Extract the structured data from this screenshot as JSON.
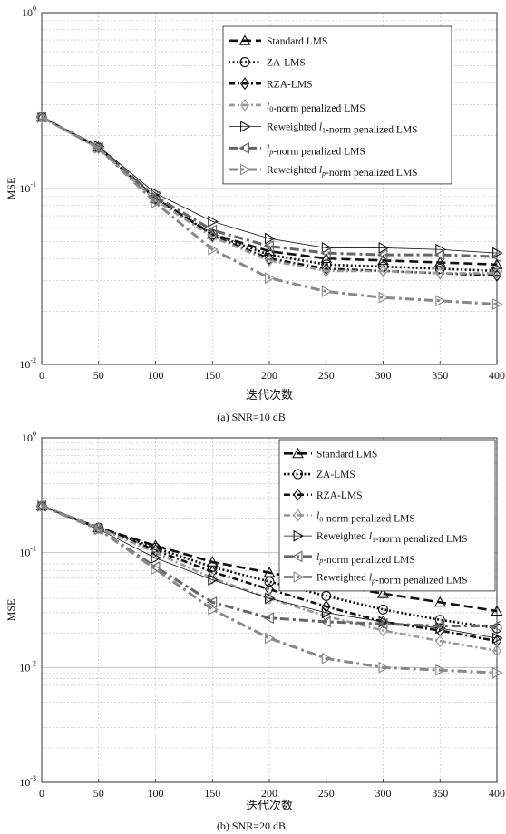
{
  "chart_data": [
    {
      "type": "line",
      "ylabel": "MSE",
      "xlabel": "迭代次数",
      "caption": "(a) SNR=10 dB",
      "xlim": [
        0,
        400
      ],
      "ylim": [
        0.01,
        1
      ],
      "yscale": "log",
      "xticks": [
        "0",
        "50",
        "100",
        "150",
        "200",
        "250",
        "300",
        "350",
        "400"
      ],
      "yticks": [
        {
          "base": "10",
          "exp": "0"
        },
        {
          "base": "10",
          "exp": "-1"
        },
        {
          "base": "10",
          "exp": "-2"
        }
      ],
      "grid": true,
      "legend_position": "top-right",
      "x": [
        0,
        50,
        100,
        150,
        200,
        250,
        300,
        350,
        400
      ],
      "series": [
        {
          "name": "Standard LMS",
          "values": [
            0.255,
            0.172,
            0.088,
            0.055,
            0.044,
            0.04,
            0.039,
            0.038,
            0.037
          ]
        },
        {
          "name": "ZA-LMS",
          "values": [
            0.255,
            0.171,
            0.087,
            0.055,
            0.042,
            0.037,
            0.036,
            0.035,
            0.034
          ]
        },
        {
          "name": "RZA-LMS",
          "values": [
            0.255,
            0.17,
            0.086,
            0.054,
            0.04,
            0.035,
            0.034,
            0.033,
            0.032
          ]
        },
        {
          "name": "l0-norm penalized LMS",
          "values": [
            0.255,
            0.17,
            0.086,
            0.053,
            0.039,
            0.034,
            0.034,
            0.033,
            0.033
          ]
        },
        {
          "name": "Reweighted l1-norm penalized LMS",
          "values": [
            0.255,
            0.174,
            0.094,
            0.065,
            0.052,
            0.046,
            0.046,
            0.045,
            0.043
          ]
        },
        {
          "name": "lp-norm penalized LMS",
          "values": [
            0.255,
            0.17,
            0.09,
            0.058,
            0.047,
            0.043,
            0.042,
            0.042,
            0.041
          ]
        },
        {
          "name": "Reweighted lp-norm penalized LMS",
          "values": [
            0.255,
            0.17,
            0.083,
            0.045,
            0.031,
            0.026,
            0.024,
            0.023,
            0.022
          ]
        }
      ]
    },
    {
      "type": "line",
      "ylabel": "MSE",
      "xlabel": "迭代次数",
      "caption": "(b) SNR=20 dB",
      "xlim": [
        0,
        400
      ],
      "ylim": [
        0.001,
        1
      ],
      "yscale": "log",
      "xticks": [
        "0",
        "50",
        "100",
        "150",
        "200",
        "250",
        "300",
        "350",
        "400"
      ],
      "yticks": [
        {
          "base": "10",
          "exp": "0"
        },
        {
          "base": "10",
          "exp": "-1"
        },
        {
          "base": "10",
          "exp": "-2"
        },
        {
          "base": "10",
          "exp": "-3"
        }
      ],
      "grid": true,
      "legend_position": "top-right",
      "x": [
        0,
        50,
        100,
        150,
        200,
        250,
        300,
        350,
        400
      ],
      "series": [
        {
          "name": "Standard LMS",
          "values": [
            0.255,
            0.165,
            0.115,
            0.083,
            0.067,
            0.054,
            0.044,
            0.037,
            0.031
          ]
        },
        {
          "name": "ZA-LMS",
          "values": [
            0.255,
            0.165,
            0.11,
            0.075,
            0.056,
            0.042,
            0.032,
            0.026,
            0.022
          ]
        },
        {
          "name": "RZA-LMS",
          "values": [
            0.255,
            0.164,
            0.105,
            0.068,
            0.048,
            0.034,
            0.025,
            0.021,
            0.017
          ]
        },
        {
          "name": "l0-norm penalized LMS",
          "values": [
            0.255,
            0.164,
            0.1,
            0.06,
            0.04,
            0.028,
            0.021,
            0.017,
            0.014
          ]
        },
        {
          "name": "Reweighted l1-norm penalized LMS",
          "values": [
            0.255,
            0.16,
            0.09,
            0.058,
            0.04,
            0.03,
            0.025,
            0.022,
            0.018
          ]
        },
        {
          "name": "lp-norm penalized LMS",
          "values": [
            0.255,
            0.16,
            0.075,
            0.037,
            0.027,
            0.025,
            0.024,
            0.023,
            0.023
          ]
        },
        {
          "name": "Reweighted lp-norm penalized LMS",
          "values": [
            0.255,
            0.16,
            0.072,
            0.032,
            0.018,
            0.012,
            0.01,
            0.0095,
            0.009
          ]
        }
      ]
    }
  ],
  "legend_rich": [
    [
      {
        "t": "Standard LMS"
      }
    ],
    [
      {
        "t": "ZA-LMS"
      }
    ],
    [
      {
        "t": "RZA-LMS"
      }
    ],
    [
      {
        "t": "l",
        "i": true
      },
      {
        "t": "0",
        "sub": true
      },
      {
        "t": "-norm penalized LMS"
      }
    ],
    [
      {
        "t": "Reweighted "
      },
      {
        "t": "l",
        "i": true
      },
      {
        "t": "1",
        "sub": true
      },
      {
        "t": "-norm penalized LMS"
      }
    ],
    [
      {
        "t": "l",
        "i": true
      },
      {
        "t": "p",
        "sub": true,
        "i": true
      },
      {
        "t": "-norm penalized LMS"
      }
    ],
    [
      {
        "t": "Reweighted "
      },
      {
        "t": "l",
        "i": true
      },
      {
        "t": "p",
        "sub": true,
        "i": true
      },
      {
        "t": "-norm penalized LMS"
      }
    ]
  ],
  "series_styles": [
    {
      "color": "#111111",
      "dash": "10,5",
      "width": 2.6,
      "marker": "triangle-up"
    },
    {
      "color": "#111111",
      "dash": "2,2.5",
      "width": 2.6,
      "marker": "circle"
    },
    {
      "color": "#111111",
      "dash": "7,3,2,3",
      "width": 2.6,
      "marker": "diamond"
    },
    {
      "color": "#999999",
      "dash": "7,3,2,3",
      "width": 2.6,
      "marker": "diamond"
    },
    {
      "color": "#111111",
      "dash": "",
      "width": 0.8,
      "marker": "triangle-right"
    },
    {
      "color": "#666666",
      "dash": "10,4,3,4",
      "width": 3.0,
      "marker": "triangle-left"
    },
    {
      "color": "#888888",
      "dash": "10,4,3,4",
      "width": 3.0,
      "marker": "triangle-right"
    }
  ]
}
